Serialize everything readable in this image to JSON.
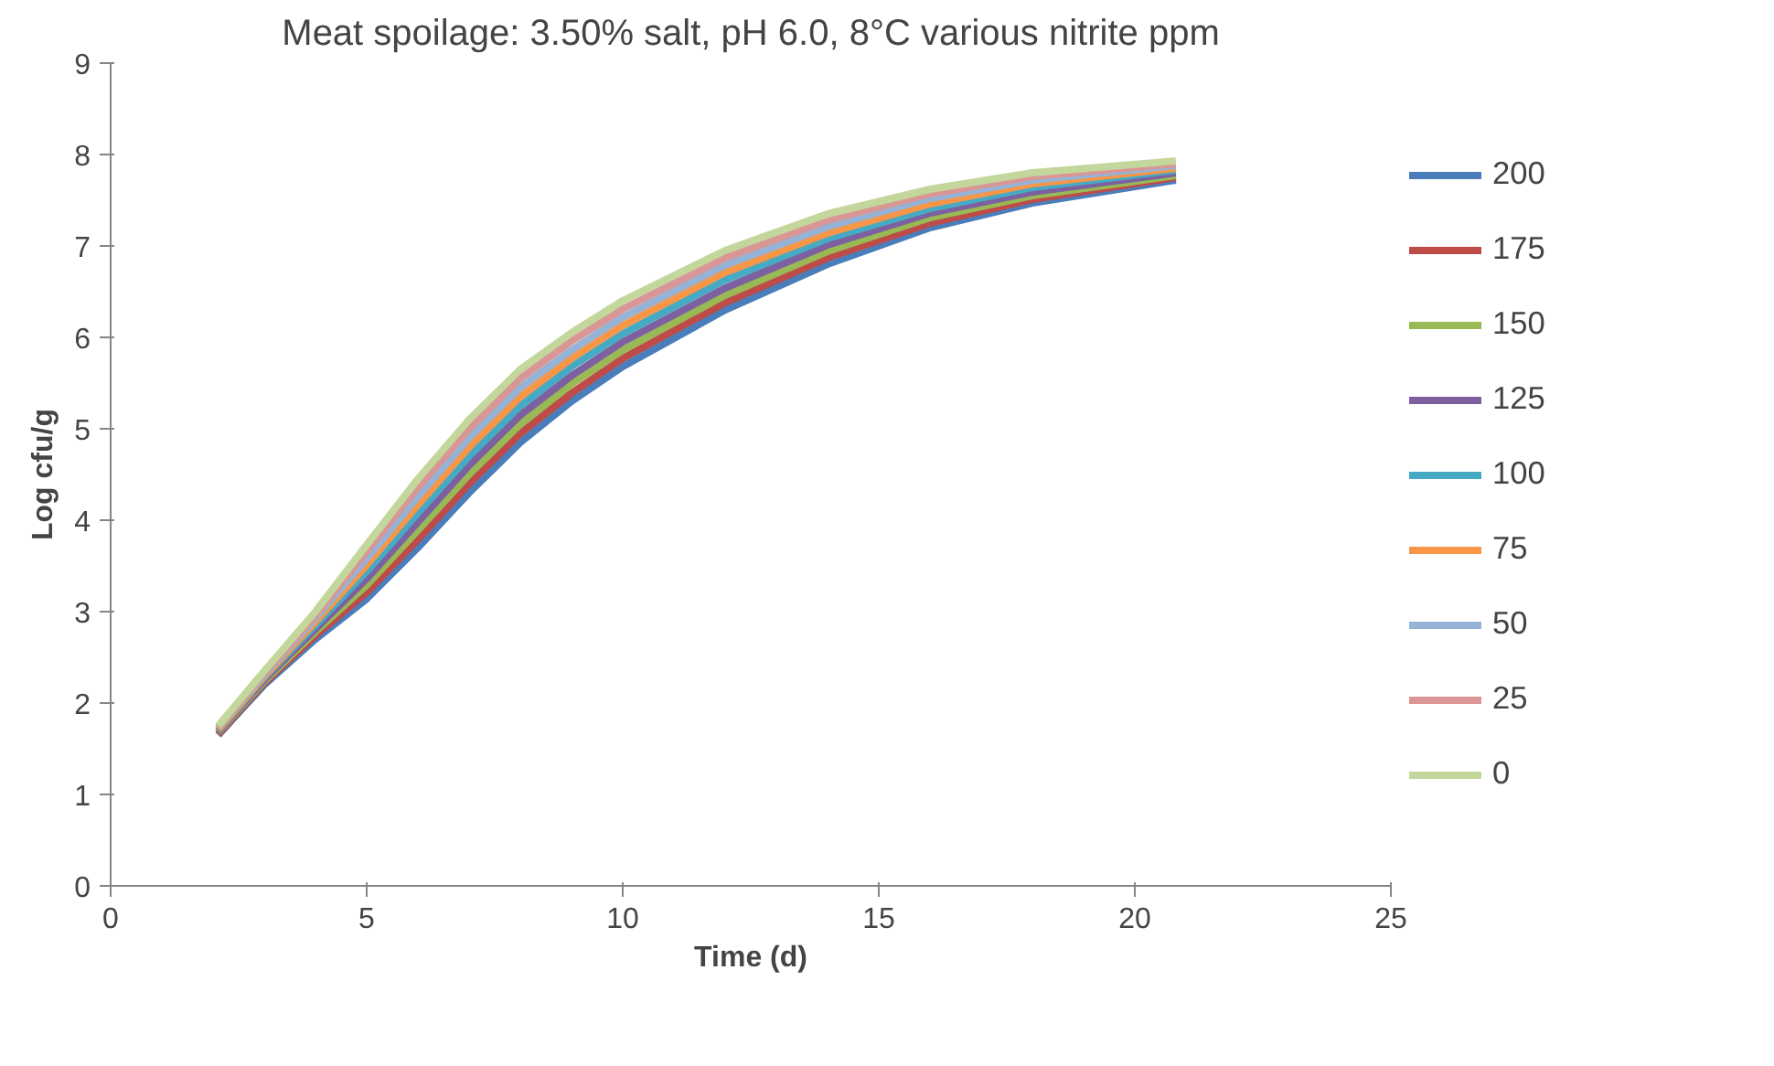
{
  "chart_data": {
    "type": "line",
    "title": "Meat spoilage: 3.50% salt, pH 6.0, 8°C various nitrite ppm",
    "xlabel": "Time (d)",
    "ylabel": "Log cfu/g",
    "x": [
      2.1,
      3,
      4,
      5,
      6,
      7,
      8,
      9,
      10,
      12,
      14,
      16,
      18,
      20.8
    ],
    "xlim": [
      0,
      25
    ],
    "xticks": [
      0,
      5,
      10,
      15,
      20,
      25
    ],
    "ylim": [
      0,
      9
    ],
    "yticks": [
      0,
      1,
      2,
      3,
      4,
      5,
      6,
      7,
      8,
      9
    ],
    "grid": false,
    "legend": "right",
    "marker": "none",
    "line_style": "solid",
    "series": [
      {
        "name": "200",
        "color": "#4a7ebb",
        "values": [
          1.65,
          2.2,
          2.7,
          3.14,
          3.7,
          4.3,
          4.85,
          5.3,
          5.68,
          6.3,
          6.8,
          7.2,
          7.47,
          7.72
        ]
      },
      {
        "name": "175",
        "color": "#be4b48",
        "values": [
          1.66,
          2.22,
          2.74,
          3.21,
          3.79,
          4.4,
          4.95,
          5.39,
          5.77,
          6.38,
          6.87,
          7.25,
          7.51,
          7.75
        ]
      },
      {
        "name": "150",
        "color": "#98b954",
        "values": [
          1.68,
          2.24,
          2.78,
          3.29,
          3.89,
          4.5,
          5.05,
          5.49,
          5.86,
          6.46,
          6.94,
          7.31,
          7.55,
          7.77
        ]
      },
      {
        "name": "125",
        "color": "#7d60a0",
        "values": [
          1.69,
          2.26,
          2.81,
          3.36,
          3.98,
          4.6,
          5.15,
          5.58,
          5.95,
          6.54,
          7.01,
          7.36,
          7.59,
          7.8
        ]
      },
      {
        "name": "100",
        "color": "#46aac5",
        "values": [
          1.7,
          2.28,
          2.85,
          3.44,
          4.08,
          4.7,
          5.25,
          5.68,
          6.04,
          6.63,
          7.08,
          7.41,
          7.64,
          7.83
        ]
      },
      {
        "name": "75",
        "color": "#f79646",
        "values": [
          1.71,
          2.29,
          2.89,
          3.51,
          4.17,
          4.8,
          5.35,
          5.77,
          6.13,
          6.71,
          7.14,
          7.46,
          7.68,
          7.85
        ]
      },
      {
        "name": "50",
        "color": "#95b3d7",
        "values": [
          1.73,
          2.31,
          2.93,
          3.58,
          4.26,
          4.9,
          5.45,
          5.86,
          6.22,
          6.79,
          7.21,
          7.52,
          7.72,
          7.88
        ]
      },
      {
        "name": "25",
        "color": "#d99694",
        "values": [
          1.74,
          2.33,
          2.96,
          3.66,
          4.36,
          5.0,
          5.55,
          5.96,
          6.31,
          6.87,
          7.28,
          7.57,
          7.76,
          7.9
        ]
      },
      {
        "name": "0",
        "color": "#c3d69b",
        "values": [
          1.75,
          2.35,
          3.0,
          3.73,
          4.45,
          5.1,
          5.65,
          6.05,
          6.4,
          6.95,
          7.35,
          7.62,
          7.8,
          7.93
        ]
      }
    ]
  }
}
